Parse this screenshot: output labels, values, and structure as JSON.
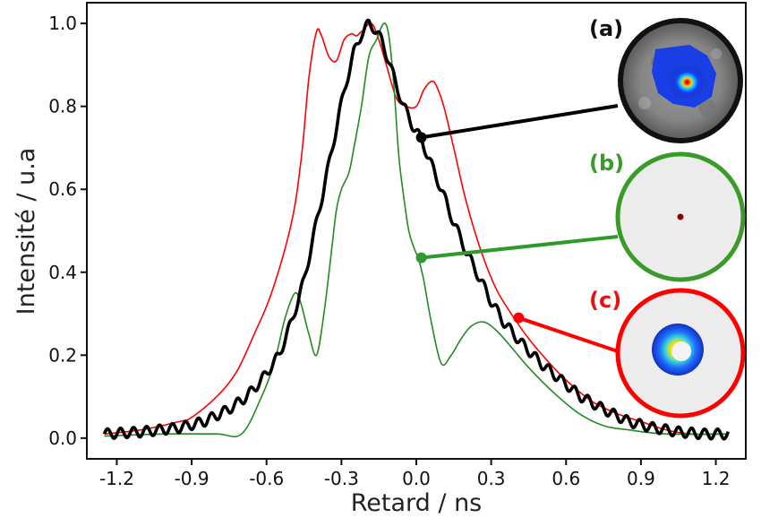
{
  "chart_data": {
    "type": "line",
    "xlabel": "Retard / ns",
    "ylabel": "Intensité / u.a",
    "xlim": [
      -1.32,
      1.32
    ],
    "ylim": [
      -0.05,
      1.05
    ],
    "xticks": [
      -1.2,
      -0.9,
      -0.6,
      -0.3,
      0.0,
      0.3,
      0.6,
      0.9,
      1.2
    ],
    "xtick_labels": [
      "-1.2",
      "-0.9",
      "-0.6",
      "-0.3",
      "0.0",
      "0.3",
      "0.6",
      "0.9",
      "1.2"
    ],
    "yticks": [
      0.0,
      0.2,
      0.4,
      0.6,
      0.8,
      1.0
    ],
    "ytick_labels": [
      "0.0",
      "0.2",
      "0.4",
      "0.6",
      "0.8",
      "1.0"
    ],
    "grid": false,
    "series": [
      {
        "color": "#ff0000",
        "x": [
          -1.25,
          -1.1,
          -0.95,
          -0.9,
          -0.8,
          -0.72,
          -0.65,
          -0.58,
          -0.5,
          -0.46,
          -0.43,
          -0.4,
          -0.38,
          -0.35,
          -0.32,
          -0.29,
          -0.26,
          -0.24,
          -0.22,
          -0.18,
          -0.15,
          -0.12,
          -0.08,
          -0.04,
          0.0,
          0.03,
          0.06,
          0.08,
          0.11,
          0.15,
          0.2,
          0.26,
          0.32,
          0.38,
          0.45,
          0.52,
          0.6,
          0.7,
          0.8,
          0.9,
          1.0,
          1.1,
          1.25
        ],
        "y": [
          0.01,
          0.02,
          0.04,
          0.05,
          0.1,
          0.16,
          0.25,
          0.35,
          0.52,
          0.68,
          0.87,
          0.98,
          0.97,
          0.92,
          0.91,
          0.96,
          0.975,
          0.97,
          0.98,
          1.0,
          0.96,
          0.9,
          0.82,
          0.8,
          0.8,
          0.84,
          0.86,
          0.85,
          0.8,
          0.7,
          0.57,
          0.45,
          0.36,
          0.3,
          0.24,
          0.19,
          0.14,
          0.09,
          0.06,
          0.04,
          0.02,
          0.01,
          0.01
        ]
      },
      {
        "color": "#228b22",
        "x": [
          -1.25,
          -1.0,
          -0.8,
          -0.7,
          -0.62,
          -0.57,
          -0.53,
          -0.5,
          -0.48,
          -0.46,
          -0.43,
          -0.4,
          -0.37,
          -0.34,
          -0.32,
          -0.3,
          -0.27,
          -0.25,
          -0.22,
          -0.19,
          -0.16,
          -0.13,
          -0.11,
          -0.09,
          -0.07,
          -0.05,
          -0.03,
          -0.01,
          0.01,
          0.03,
          0.06,
          0.1,
          0.14,
          0.18,
          0.22,
          0.27,
          0.32,
          0.38,
          0.45,
          0.55,
          0.65,
          0.75,
          0.85,
          1.0,
          1.25
        ],
        "y": [
          0.005,
          0.01,
          0.01,
          0.01,
          0.1,
          0.18,
          0.28,
          0.335,
          0.35,
          0.32,
          0.25,
          0.2,
          0.3,
          0.45,
          0.55,
          0.6,
          0.64,
          0.7,
          0.8,
          0.92,
          0.96,
          1.0,
          0.97,
          0.85,
          0.68,
          0.58,
          0.5,
          0.46,
          0.43,
          0.38,
          0.28,
          0.18,
          0.2,
          0.24,
          0.27,
          0.28,
          0.26,
          0.22,
          0.17,
          0.11,
          0.06,
          0.03,
          0.02,
          0.01,
          0.01
        ]
      },
      {
        "color": "#000000",
        "x": [
          -1.25,
          -1.1,
          -0.95,
          -0.85,
          -0.75,
          -0.68,
          -0.62,
          -0.55,
          -0.5,
          -0.45,
          -0.4,
          -0.35,
          -0.31,
          -0.28,
          -0.25,
          -0.22,
          -0.19,
          -0.17,
          -0.14,
          -0.11,
          -0.08,
          -0.05,
          -0.02,
          0.02,
          0.06,
          0.1,
          0.15,
          0.2,
          0.25,
          0.3,
          0.35,
          0.42,
          0.5,
          0.58,
          0.66,
          0.75,
          0.85,
          0.95,
          1.05,
          1.15,
          1.25
        ],
        "y": [
          0.01,
          0.015,
          0.025,
          0.04,
          0.07,
          0.1,
          0.14,
          0.2,
          0.28,
          0.38,
          0.52,
          0.66,
          0.78,
          0.86,
          0.93,
          0.975,
          1.0,
          0.99,
          0.96,
          0.91,
          0.85,
          0.8,
          0.76,
          0.72,
          0.66,
          0.6,
          0.52,
          0.45,
          0.39,
          0.33,
          0.28,
          0.23,
          0.18,
          0.14,
          0.1,
          0.07,
          0.04,
          0.025,
          0.015,
          0.01,
          0.01
        ],
        "ripple": 0.012,
        "bold": true
      }
    ],
    "annotations": [
      {
        "label": "(a)",
        "label_color": "#111111",
        "point": [
          0.02,
          0.725
        ],
        "line_color": "#000000",
        "ring_color": "#111111",
        "image": "gray speckle beam profile"
      },
      {
        "label": "(b)",
        "label_color": "#3a9a2a",
        "point": [
          0.02,
          0.435
        ],
        "line_color": "#2e9a2e",
        "ring_color": "#3a9a2a",
        "image": "small red dot"
      },
      {
        "label": "(c)",
        "label_color": "#e81010",
        "point": [
          0.41,
          0.29
        ],
        "line_color": "#ff0000",
        "ring_color": "#ff0000",
        "image": "annular beam profile"
      }
    ]
  }
}
